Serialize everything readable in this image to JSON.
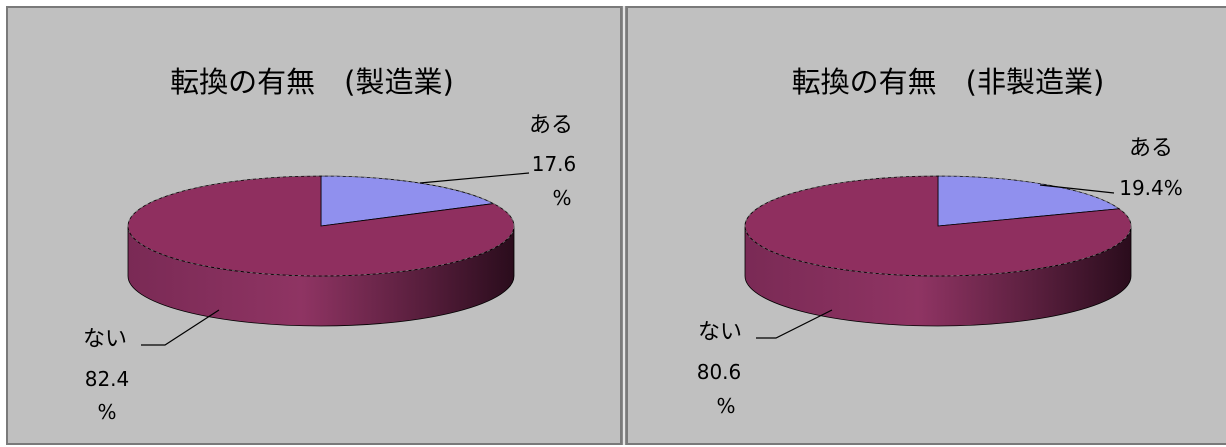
{
  "chart_data": [
    {
      "type": "pie",
      "title": "転換の有無　(製造業)",
      "series": [
        {
          "label": "ある",
          "value": 17.6,
          "value_text": [
            "17.6",
            "%"
          ],
          "color": "#9090ee"
        },
        {
          "label": "ない",
          "value": 82.4,
          "value_text": [
            "82.4",
            "%"
          ],
          "color": "#993366"
        }
      ],
      "legend": "none",
      "style": "3d"
    },
    {
      "type": "pie",
      "title": "転換の有無　(非製造業)",
      "series": [
        {
          "label": "ある",
          "value": 19.4,
          "value_text": [
            "19.4%"
          ],
          "color": "#9090ee"
        },
        {
          "label": "ない",
          "value": 80.6,
          "value_text": [
            "80.6",
            "%"
          ],
          "color": "#993366"
        }
      ],
      "legend": "none",
      "style": "3d"
    }
  ]
}
